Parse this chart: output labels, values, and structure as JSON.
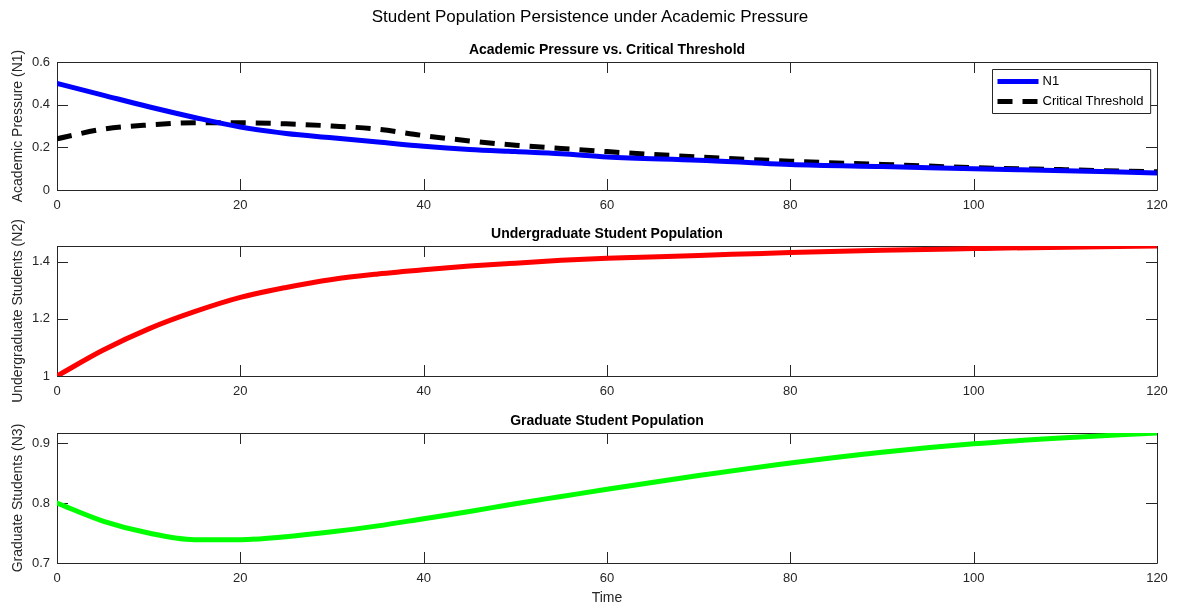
{
  "chart_data": [
    {
      "type": "line",
      "title": "Student Population Persistence under Academic Pressure",
      "subtitle": "Academic Pressure vs. Critical Threshold",
      "ylabel": "Academic Pressure (N1)",
      "x": [
        0,
        5,
        10,
        15,
        20,
        25,
        30,
        35,
        40,
        45,
        50,
        55,
        60,
        70,
        80,
        90,
        100,
        110,
        120
      ],
      "series": [
        {
          "name": "N1",
          "color": "#0000ff",
          "values": [
            0.5,
            0.445,
            0.39,
            0.34,
            0.295,
            0.265,
            0.245,
            0.225,
            0.205,
            0.19,
            0.18,
            0.17,
            0.155,
            0.14,
            0.12,
            0.11,
            0.1,
            0.09,
            0.08
          ]
        },
        {
          "name": "Critical Threshold",
          "color": "#000000",
          "line_style": "dashed",
          "values": [
            0.24,
            0.285,
            0.305,
            0.315,
            0.315,
            0.31,
            0.3,
            0.285,
            0.255,
            0.23,
            0.21,
            0.195,
            0.18,
            0.155,
            0.135,
            0.12,
            0.105,
            0.095,
            0.085
          ]
        }
      ],
      "xlim": [
        0,
        120
      ],
      "xticks": [
        0,
        20,
        40,
        60,
        80,
        100,
        120
      ],
      "ylim": [
        0,
        0.6
      ],
      "yticks": [
        0,
        0.2,
        0.4,
        0.6
      ],
      "legend": "top right"
    },
    {
      "type": "line",
      "title": "Undergraduate Student Population",
      "ylabel": "Undergraduate Students (N2)",
      "x": [
        0,
        5,
        10,
        15,
        20,
        25,
        30,
        35,
        40,
        45,
        50,
        55,
        60,
        70,
        80,
        90,
        100,
        110,
        120
      ],
      "series": [
        {
          "color": "#ff0000",
          "values": [
            1,
            1.09,
            1.165,
            1.225,
            1.275,
            1.31,
            1.338,
            1.357,
            1.372,
            1.385,
            1.395,
            1.405,
            1.412,
            1.422,
            1.432,
            1.44,
            1.446,
            1.451,
            1.455
          ]
        }
      ],
      "xlim": [
        0,
        120
      ],
      "xticks": [
        0,
        20,
        40,
        60,
        80,
        100,
        120
      ],
      "ylim": [
        1,
        1.455
      ],
      "yticks": [
        1,
        1.2,
        1.4
      ]
    },
    {
      "type": "line",
      "title": "Graduate Student Population",
      "xlabel": "Time",
      "ylabel": "Graduate Students (N3)",
      "x": [
        0,
        5,
        10,
        15,
        20,
        25,
        30,
        35,
        40,
        45,
        50,
        55,
        60,
        70,
        80,
        90,
        100,
        110,
        120
      ],
      "series": [
        {
          "color": "#00ff00",
          "values": [
            0.8,
            0.77,
            0.75,
            0.739,
            0.739,
            0.744,
            0.752,
            0.762,
            0.774,
            0.786,
            0.799,
            0.811,
            0.823,
            0.846,
            0.867,
            0.885,
            0.899,
            0.909,
            0.917
          ]
        }
      ],
      "xlim": [
        0,
        120
      ],
      "xticks": [
        0,
        20,
        40,
        60,
        80,
        100,
        120
      ],
      "ylim": [
        0.7,
        0.917
      ],
      "yticks": [
        0.7,
        0.8,
        0.9
      ]
    }
  ]
}
